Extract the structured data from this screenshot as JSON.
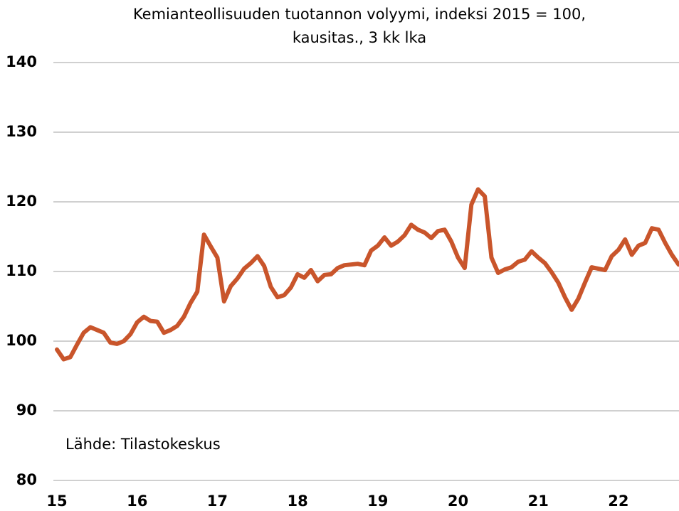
{
  "chart_data": {
    "type": "line",
    "title": "Kemianteollisuuden tuotannon volyymi, indeksi 2015 = 100, kausitas., 3 kk lka",
    "annotation": "Lähde: Tilastokeskus",
    "categories": [
      "15",
      null,
      null,
      null,
      null,
      null,
      null,
      null,
      null,
      null,
      null,
      null,
      "16",
      null,
      null,
      null,
      null,
      null,
      null,
      null,
      null,
      null,
      null,
      null,
      "17",
      null,
      null,
      null,
      null,
      null,
      null,
      null,
      null,
      null,
      null,
      null,
      "18",
      null,
      null,
      null,
      null,
      null,
      null,
      null,
      null,
      null,
      null,
      null,
      "19",
      null,
      null,
      null,
      null,
      null,
      null,
      null,
      null,
      null,
      null,
      null,
      "20",
      null,
      null,
      null,
      null,
      null,
      null,
      null,
      null,
      null,
      null,
      null,
      "21",
      null,
      null,
      null,
      null,
      null,
      null,
      null,
      null,
      null,
      null,
      null,
      "22",
      null,
      null,
      null,
      null,
      null,
      null,
      null,
      null,
      null
    ],
    "series": [
      {
        "color": "#c9552b",
        "values": [
          98.8,
          97.4,
          97.7,
          99.5,
          101.2,
          102.0,
          101.6,
          101.2,
          99.8,
          99.6,
          100.0,
          101.0,
          102.7,
          103.5,
          102.9,
          102.8,
          101.2,
          101.6,
          102.2,
          103.5,
          105.5,
          107.1,
          115.3,
          113.6,
          112.0,
          105.7,
          107.9,
          109.0,
          110.4,
          111.2,
          112.2,
          110.8,
          107.8,
          106.3,
          106.6,
          107.7,
          109.6,
          109.1,
          110.2,
          108.6,
          109.5,
          109.6,
          110.5,
          110.9,
          111.0,
          111.1,
          110.9,
          113.0,
          113.7,
          114.9,
          113.7,
          114.3,
          115.2,
          116.7,
          116.0,
          115.6,
          114.8,
          115.8,
          116.0,
          114.3,
          112.0,
          110.5,
          119.6,
          121.8,
          120.8,
          112.0,
          109.8,
          110.3,
          110.6,
          111.4,
          111.7,
          112.9,
          112.0,
          111.2,
          109.9,
          108.4,
          106.3,
          104.5,
          106.1,
          108.4,
          110.6,
          110.4,
          110.2,
          112.2,
          113.1,
          114.6,
          112.4,
          113.7,
          114.1,
          116.2,
          116.0,
          114.1,
          112.4,
          111.0
        ]
      }
    ],
    "ylim": [
      80,
      140
    ],
    "yticks": [
      80,
      90,
      100,
      110,
      120,
      130,
      140
    ],
    "grid": true
  }
}
